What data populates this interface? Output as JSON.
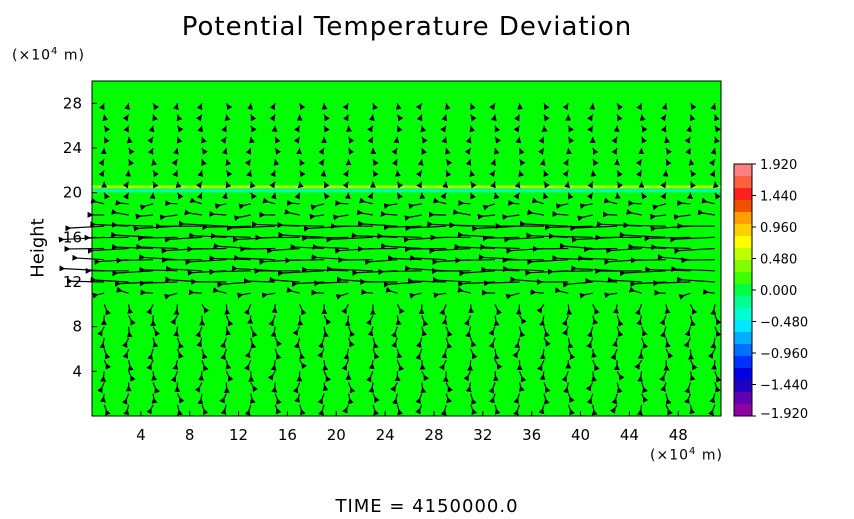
{
  "title": "Potential Temperature Deviation",
  "y_unit": {
    "prefix": "(×10",
    "exp": "4",
    "suffix": " m)"
  },
  "x_unit": {
    "prefix": "(×10",
    "exp": "4",
    "suffix": " m)"
  },
  "time_label": "TIME  =  4150000.0",
  "chart_data": {
    "type": "heatmap",
    "title": "Potential Temperature Deviation",
    "xlabel": "",
    "ylabel": "Height",
    "xlim": [
      0,
      51.5
    ],
    "ylim": [
      0,
      30
    ],
    "x_ticks": [
      4,
      8,
      12,
      16,
      20,
      24,
      28,
      32,
      36,
      40,
      44,
      48
    ],
    "y_ticks": [
      4,
      8,
      12,
      16,
      20,
      24,
      28
    ],
    "colorbar": {
      "min": -1.92,
      "max": 1.92,
      "tick_values": [
        1.92,
        1.44,
        0.96,
        0.48,
        0.0,
        -0.48,
        -0.96,
        -1.44,
        -1.92
      ],
      "tick_labels": [
        "1.920",
        "1.440",
        "0.960",
        "0.480",
        "0.000",
        "−0.480",
        "−0.960",
        "−1.440",
        "−1.920"
      ],
      "colors": [
        "#ff8080",
        "#ff6040",
        "#ff2020",
        "#f05000",
        "#ffa000",
        "#ffd000",
        "#ffff00",
        "#c0ff00",
        "#80ff00",
        "#40ff00",
        "#00ff40",
        "#00ff90",
        "#00ffd0",
        "#00e8ff",
        "#00b0ff",
        "#0070ff",
        "#0030ff",
        "#0000e0",
        "#2000c0",
        "#6000b0",
        "#9000a0"
      ]
    },
    "background_value": 0.0,
    "anomaly_band": {
      "height": 20.3,
      "values": [
        0.55,
        -0.4
      ]
    },
    "wind_field": {
      "description_rows": [
        {
          "height": 17.0,
          "u": -4.2,
          "v": 0.0
        },
        {
          "height": 16.0,
          "u": -4.0,
          "v": 0.0
        },
        {
          "height": 15.0,
          "u": -3.5,
          "v": 0.0
        },
        {
          "height": 14.0,
          "u": -3.5,
          "v": 0.0
        },
        {
          "height": 13.0,
          "u": -4.0,
          "v": 0.0
        },
        {
          "height": 12.0,
          "u": -3.2,
          "v": 0.0
        },
        {
          "height": 18.0,
          "u": -1.2,
          "v": 0.0
        },
        {
          "height": 19.0,
          "u": -0.8,
          "v": 0.0
        },
        {
          "height": 11.0,
          "u": -0.8,
          "v": 0.0
        }
      ]
    },
    "grid": false
  }
}
